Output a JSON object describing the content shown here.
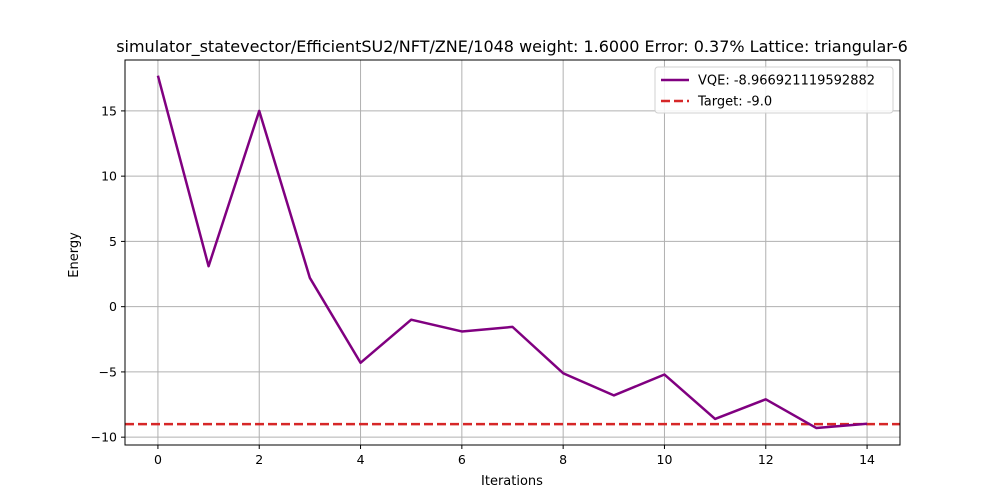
{
  "chart_data": {
    "type": "line",
    "title": "simulator_statevector/EfficientSU2/NFT/ZNE/1048 weight: 1.6000 Error: 0.37% Lattice: triangular-6",
    "xlabel": "Iterations",
    "ylabel": "Energy",
    "xlim": [
      -0.65,
      14.65
    ],
    "ylim": [
      -10.6,
      18.9
    ],
    "x_ticks": [
      0,
      2,
      4,
      6,
      8,
      10,
      12,
      14
    ],
    "x_tick_labels": [
      "0",
      "2",
      "4",
      "6",
      "8",
      "10",
      "12",
      "14"
    ],
    "y_ticks": [
      -10,
      -5,
      0,
      5,
      10,
      15
    ],
    "y_tick_labels": [
      "−10",
      "−5",
      "0",
      "5",
      "10",
      "15"
    ],
    "grid": true,
    "legend_position": "top-right",
    "series": [
      {
        "name": "VQE: -8.966921119592882",
        "style": "solid",
        "color": "#800080",
        "x": [
          0,
          1,
          2,
          3,
          4,
          5,
          6,
          7,
          8,
          9,
          10,
          11,
          12,
          13,
          14
        ],
        "y": [
          17.7,
          3.1,
          15.0,
          2.2,
          -4.3,
          -1.0,
          -1.9,
          -1.55,
          -5.1,
          -6.8,
          -5.2,
          -8.6,
          -7.1,
          -9.3,
          -8.97
        ]
      },
      {
        "name": "Target: -9.0",
        "style": "dashed",
        "color": "#d62728",
        "hline": -9.0
      }
    ]
  }
}
